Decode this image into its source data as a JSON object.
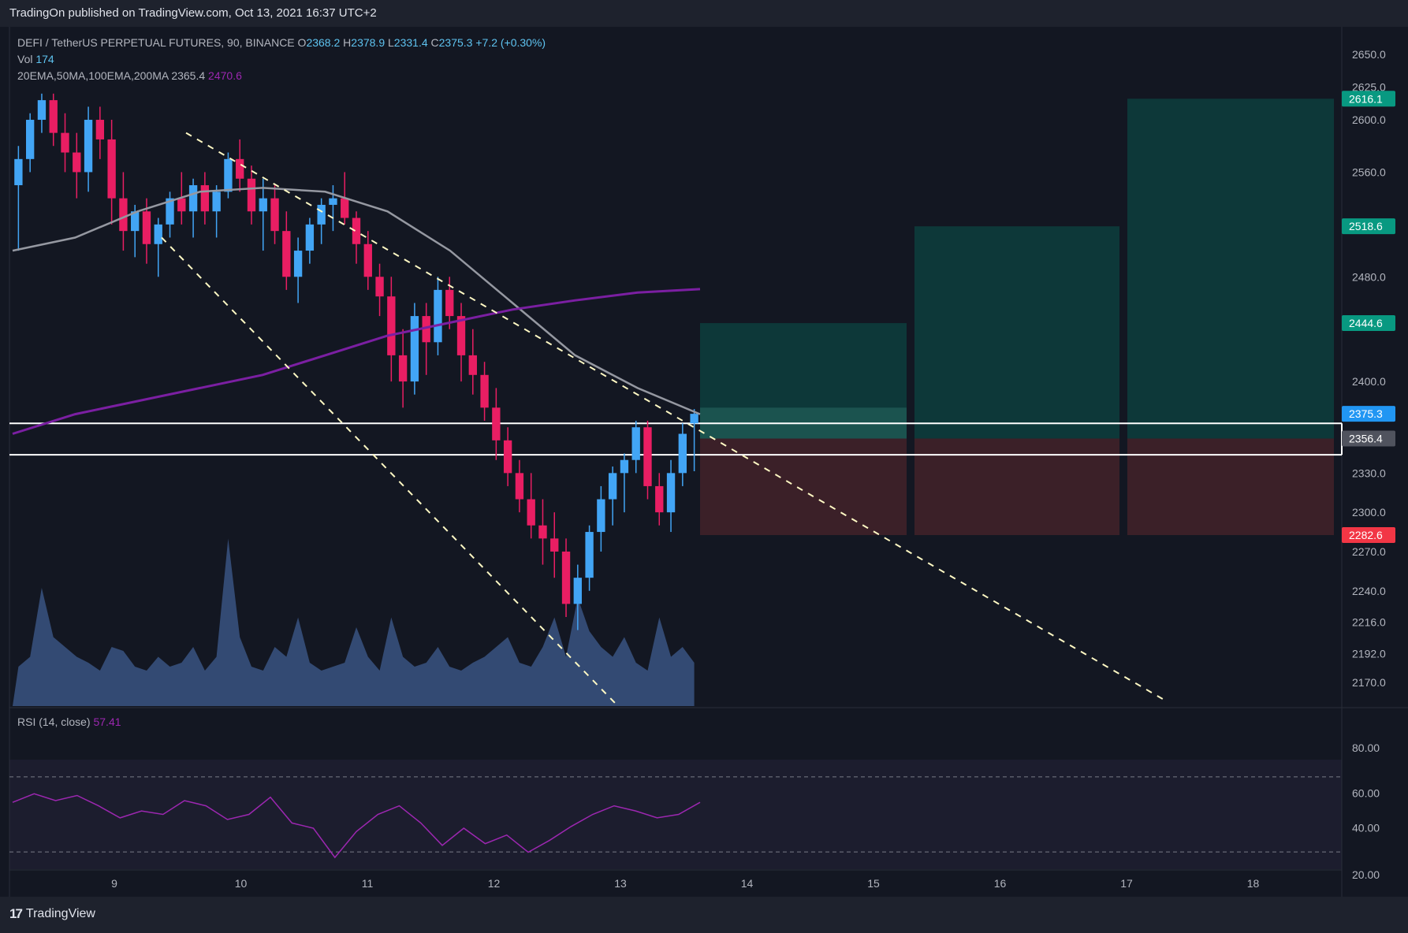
{
  "header": {
    "publisher_line": "TradingOn published on TradingView.com, Oct 13, 2021 16:37 UTC+2"
  },
  "legend": {
    "symbol": "DEFI / TetherUS PERPETUAL FUTURES, 90, BINANCE",
    "o_label": "O",
    "open": "2368.2",
    "h_label": "H",
    "high": "2378.9",
    "l_label": "L",
    "low": "2331.4",
    "c_label": "C",
    "close": "2375.3",
    "change": "+7.2 (+0.30%)",
    "vol_label": "Vol",
    "vol_value": "174",
    "ma_label": "20EMA,50MA,100EMA,200MA",
    "ma_value_1": "2365.4",
    "ma_value_2": "2470.6"
  },
  "rsi": {
    "label": "RSI (14, close)",
    "value": "57.41"
  },
  "footer": {
    "brand": "TradingView"
  },
  "colors": {
    "background": "#131722",
    "up": "#42a5f5",
    "down": "#e91e63",
    "ma_gray": "#9598a1",
    "ma_purple": "#7b1fa2",
    "target": "#0d3a3b",
    "stop": "#3d2129",
    "rsi_line": "#9c27b0"
  },
  "chart_data": {
    "type": "candlestick",
    "title": "DEFI / TetherUS PERPETUAL FUTURES, 90, BINANCE",
    "timeframe": "90",
    "x_ticks": [
      "9",
      "10",
      "11",
      "12",
      "13",
      "14",
      "15",
      "16",
      "17",
      "18"
    ],
    "y_ticks": [
      2650.0,
      2625.0,
      2600.0,
      2560.0,
      2518.6,
      2480.0,
      2444.6,
      2400.0,
      2375.3,
      2356.4,
      2330.0,
      2300.0,
      2282.6,
      2270.0,
      2240.0,
      2216.0,
      2192.0,
      2170.0
    ],
    "y_tick_labels": [
      "2650.0",
      "2625.0",
      "2600.0",
      "2560.0",
      "2480.0",
      "2400.0",
      "2330.0",
      "2300.0",
      "2270.0",
      "2240.0",
      "2216.0",
      "2192.0",
      "2170.0"
    ],
    "price_tags": [
      {
        "label": "2616.1",
        "value": 2616.1,
        "color": "#089981"
      },
      {
        "label": "2518.6",
        "value": 2518.6,
        "color": "#089981"
      },
      {
        "label": "2444.6",
        "value": 2444.6,
        "color": "#089981"
      },
      {
        "label": "2375.3",
        "value": 2375.3,
        "color": "#2196f3"
      },
      {
        "label": "2356.4",
        "value": 2356.4,
        "color": "#50535e"
      },
      {
        "label": "2282.6",
        "value": 2282.6,
        "color": "#f23645"
      }
    ],
    "entry": 2356.4,
    "stop": 2282.6,
    "targets": [
      2444.6,
      2518.6,
      2616.1
    ],
    "support_zone": [
      2344.0,
      2368.0
    ],
    "candles": [
      [
        2550,
        2580,
        2500,
        2570
      ],
      [
        2570,
        2605,
        2560,
        2600
      ],
      [
        2600,
        2620,
        2590,
        2615
      ],
      [
        2615,
        2620,
        2580,
        2590
      ],
      [
        2590,
        2605,
        2560,
        2575
      ],
      [
        2575,
        2590,
        2540,
        2560
      ],
      [
        2560,
        2610,
        2545,
        2600
      ],
      [
        2600,
        2610,
        2570,
        2585
      ],
      [
        2585,
        2600,
        2520,
        2540
      ],
      [
        2540,
        2560,
        2500,
        2515
      ],
      [
        2515,
        2535,
        2495,
        2530
      ],
      [
        2530,
        2540,
        2490,
        2505
      ],
      [
        2505,
        2525,
        2480,
        2520
      ],
      [
        2520,
        2545,
        2510,
        2540
      ],
      [
        2540,
        2560,
        2520,
        2530
      ],
      [
        2530,
        2555,
        2510,
        2550
      ],
      [
        2550,
        2560,
        2520,
        2530
      ],
      [
        2530,
        2550,
        2510,
        2545
      ],
      [
        2545,
        2575,
        2540,
        2570
      ],
      [
        2570,
        2585,
        2545,
        2555
      ],
      [
        2555,
        2565,
        2520,
        2530
      ],
      [
        2530,
        2555,
        2500,
        2540
      ],
      [
        2540,
        2550,
        2505,
        2515
      ],
      [
        2515,
        2530,
        2470,
        2480
      ],
      [
        2480,
        2510,
        2460,
        2500
      ],
      [
        2500,
        2525,
        2490,
        2520
      ],
      [
        2520,
        2540,
        2505,
        2535
      ],
      [
        2535,
        2550,
        2515,
        2540
      ],
      [
        2540,
        2560,
        2520,
        2525
      ],
      [
        2525,
        2530,
        2490,
        2505
      ],
      [
        2505,
        2515,
        2470,
        2480
      ],
      [
        2480,
        2490,
        2450,
        2465
      ],
      [
        2465,
        2480,
        2400,
        2420
      ],
      [
        2420,
        2440,
        2380,
        2400
      ],
      [
        2400,
        2460,
        2390,
        2450
      ],
      [
        2450,
        2460,
        2405,
        2430
      ],
      [
        2430,
        2480,
        2420,
        2470
      ],
      [
        2470,
        2480,
        2440,
        2450
      ],
      [
        2450,
        2460,
        2400,
        2420
      ],
      [
        2420,
        2440,
        2390,
        2405
      ],
      [
        2405,
        2415,
        2370,
        2380
      ],
      [
        2380,
        2395,
        2340,
        2355
      ],
      [
        2355,
        2365,
        2320,
        2330
      ],
      [
        2330,
        2340,
        2300,
        2310
      ],
      [
        2310,
        2330,
        2280,
        2290
      ],
      [
        2290,
        2310,
        2260,
        2280
      ],
      [
        2280,
        2300,
        2250,
        2270
      ],
      [
        2270,
        2280,
        2220,
        2230
      ],
      [
        2230,
        2260,
        2210,
        2250
      ],
      [
        2250,
        2290,
        2240,
        2285
      ],
      [
        2285,
        2320,
        2270,
        2310
      ],
      [
        2310,
        2335,
        2290,
        2330
      ],
      [
        2330,
        2345,
        2300,
        2340
      ],
      [
        2340,
        2370,
        2330,
        2365
      ],
      [
        2365,
        2370,
        2310,
        2320
      ],
      [
        2320,
        2330,
        2290,
        2300
      ],
      [
        2300,
        2340,
        2285,
        2330
      ],
      [
        2330,
        2368,
        2320,
        2360
      ],
      [
        2368,
        2378.9,
        2331.4,
        2375.3
      ]
    ],
    "ema_100": [
      2500,
      2510,
      2530,
      2545,
      2548,
      2545,
      2530,
      2500,
      2460,
      2420,
      2395,
      2375
    ],
    "ma_200": [
      2360,
      2375,
      2385,
      2395,
      2405,
      2420,
      2435,
      2445,
      2455,
      2462,
      2468,
      2470.6
    ],
    "rsi_values": [
      57,
      62,
      58,
      61,
      55,
      48,
      52,
      50,
      58,
      55,
      47,
      50,
      60,
      45,
      42,
      25,
      40,
      50,
      55,
      45,
      32,
      42,
      33,
      38,
      28,
      35,
      43,
      50,
      55,
      52,
      48,
      50,
      57
    ],
    "rsi_levels": [
      80,
      60,
      40,
      20
    ],
    "rsi_band": [
      30,
      70
    ]
  }
}
